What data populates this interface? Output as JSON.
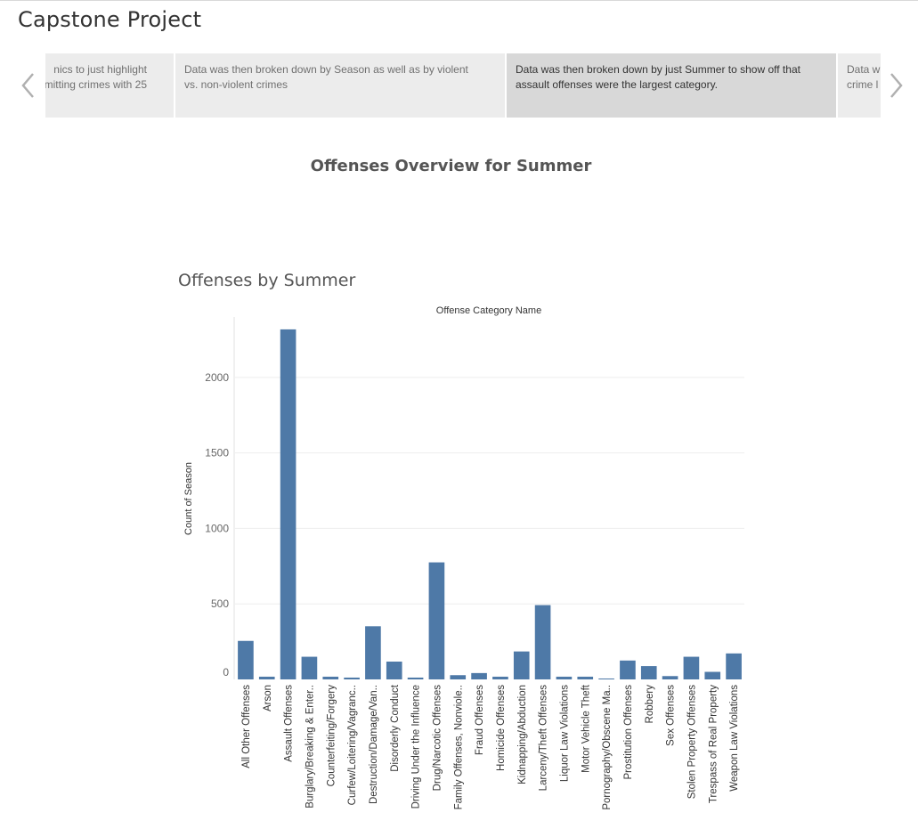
{
  "story": {
    "title": "Capstone Project",
    "points": [
      {
        "text_line1": "nics to just highlight",
        "text_line2": "mitting crimes with 25"
      },
      {
        "text_line1": "Data was then broken down by Season as well as by violent",
        "text_line2": "vs. non-violent crimes"
      },
      {
        "text_line1": "Data was then broken down by just Summer to show off that",
        "text_line2": "assault offenses were the largest category."
      },
      {
        "text_line1": "Data w",
        "text_line2": "crime l"
      }
    ],
    "active_index": 2
  },
  "dashboard": {
    "title": "Offenses Overview for Summer",
    "sheet_title": "Offenses by Summer"
  },
  "chart_data": {
    "type": "bar",
    "xlabel": "Offense Category Name",
    "ylabel": "Count of Season",
    "ylim": [
      0,
      2400
    ],
    "yticks": [
      0,
      500,
      1000,
      1500,
      2000
    ],
    "grid": true,
    "bar_color": "#4e79a7",
    "categories": [
      "All Other Offenses",
      "Arson",
      "Assault Offenses",
      "Burglary/Breaking & Enter..",
      "Counterfeiting/Forgery",
      "Curfew/Loitering/Vagranc..",
      "Destruction/Damage/Van..",
      "Disorderly Conduct",
      "Driving Under the Influence",
      "Drug/Narcotic Offenses",
      "Family Offenses, Nonviole..",
      "Fraud Offenses",
      "Homicide Offenses",
      "Kidnapping/Abduction",
      "Larceny/Theft Offenses",
      "Liquor Law Violations",
      "Motor Vehicle Theft",
      "Pornography/Obscene Ma..",
      "Prostitution Offenses",
      "Robbery",
      "Sex Offenses",
      "Stolen Property Offenses",
      "Trespass of Real Property",
      "Weapon Law Violations"
    ],
    "values": [
      255,
      18,
      2318,
      150,
      18,
      12,
      352,
      118,
      12,
      775,
      28,
      42,
      18,
      185,
      492,
      18,
      18,
      6,
      125,
      88,
      22,
      150,
      50,
      172
    ]
  }
}
